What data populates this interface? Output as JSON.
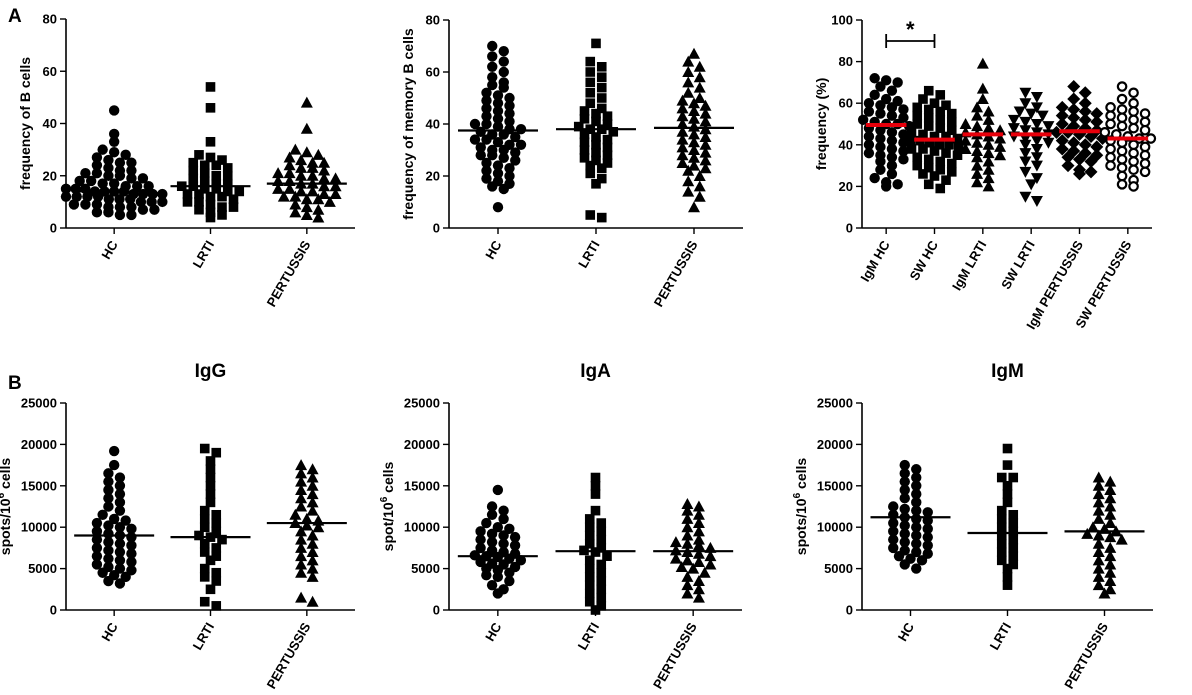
{
  "panel_labels": [
    "A",
    "B"
  ],
  "chart_data": [
    {
      "type": "scatter",
      "panel": "A",
      "title": "",
      "ylabel": "frequency of B cells",
      "ylim": [
        0,
        80
      ],
      "yticks": [
        0,
        20,
        40,
        60,
        80
      ],
      "categories": [
        "HC",
        "LRTI",
        "PERTUSSIS"
      ],
      "markers": [
        "circle",
        "square",
        "triangle"
      ],
      "medians": [
        14,
        16,
        17
      ],
      "median_color": "#000000",
      "series": [
        {
          "name": "HC",
          "values": [
            45,
            36,
            33,
            30,
            29,
            28,
            27,
            26,
            25,
            25,
            24,
            23,
            22,
            22,
            21,
            21,
            20,
            20,
            19,
            19,
            18,
            18,
            17,
            17,
            16,
            16,
            16,
            15,
            15,
            15,
            14,
            14,
            14,
            14,
            13,
            13,
            13,
            13,
            12,
            12,
            12,
            12,
            11,
            11,
            11,
            10,
            10,
            10,
            9,
            9,
            9,
            8,
            8,
            8,
            7,
            7,
            6,
            6,
            5,
            5
          ]
        },
        {
          "name": "LRTI",
          "values": [
            54,
            46,
            33,
            28,
            27,
            26,
            25,
            24,
            24,
            23,
            22,
            21,
            20,
            20,
            19,
            18,
            17,
            17,
            16,
            16,
            15,
            15,
            14,
            14,
            13,
            13,
            12,
            12,
            11,
            10,
            10,
            9,
            8,
            8,
            7,
            6,
            5,
            4
          ]
        },
        {
          "name": "PERTUSSIS",
          "values": [
            48,
            38,
            30,
            29,
            28,
            27,
            26,
            25,
            25,
            24,
            23,
            23,
            22,
            21,
            21,
            20,
            20,
            19,
            19,
            18,
            18,
            17,
            17,
            16,
            16,
            15,
            15,
            14,
            14,
            13,
            13,
            12,
            12,
            11,
            11,
            10,
            9,
            8,
            7,
            6,
            5,
            4
          ]
        }
      ]
    },
    {
      "type": "scatter",
      "panel": "A",
      "title": "",
      "ylabel": "frequency of memory B cells",
      "ylim": [
        0,
        80
      ],
      "yticks": [
        0,
        20,
        40,
        60,
        80
      ],
      "categories": [
        "HC",
        "LRTI",
        "PERTUSSIS"
      ],
      "markers": [
        "circle",
        "square",
        "triangle"
      ],
      "medians": [
        37.5,
        38,
        38.5
      ],
      "median_color": "#000000",
      "series": [
        {
          "name": "HC",
          "values": [
            70,
            68,
            66,
            64,
            62,
            60,
            58,
            56,
            55,
            54,
            52,
            51,
            50,
            49,
            48,
            47,
            46,
            45,
            44,
            43,
            42,
            41,
            40,
            40,
            39,
            38,
            38,
            37,
            36,
            36,
            35,
            34,
            34,
            33,
            32,
            32,
            31,
            30,
            30,
            29,
            28,
            28,
            27,
            26,
            25,
            24,
            23,
            22,
            21,
            20,
            19,
            18,
            17,
            16,
            15,
            8
          ]
        },
        {
          "name": "LRTI",
          "values": [
            71,
            64,
            62,
            60,
            58,
            56,
            54,
            52,
            50,
            48,
            46,
            45,
            44,
            43,
            42,
            41,
            40,
            39,
            38,
            38,
            37,
            36,
            35,
            34,
            33,
            32,
            31,
            30,
            29,
            28,
            27,
            26,
            25,
            24,
            23,
            21,
            19,
            17,
            5,
            4
          ]
        },
        {
          "name": "PERTUSSIS",
          "values": [
            67,
            64,
            62,
            60,
            58,
            56,
            54,
            52,
            50,
            49,
            48,
            47,
            46,
            45,
            44,
            43,
            42,
            41,
            40,
            39,
            38,
            37,
            36,
            35,
            34,
            33,
            32,
            31,
            30,
            29,
            28,
            27,
            26,
            25,
            24,
            23,
            22,
            20,
            18,
            16,
            14,
            12,
            8
          ]
        }
      ]
    },
    {
      "type": "scatter",
      "panel": "A",
      "title": "",
      "ylabel": "frequency (%)",
      "ylim": [
        0,
        100
      ],
      "yticks": [
        0,
        20,
        40,
        60,
        80,
        100
      ],
      "categories": [
        "IgM HC",
        "SW HC",
        "IgM LRTI",
        "SW LRTI",
        "IgM PERTUSSIS",
        "SW PERTUSSIS"
      ],
      "markers": [
        "circle",
        "square",
        "triangle",
        "triangle-down",
        "diamond",
        "circle-open"
      ],
      "medians": [
        49.5,
        42.5,
        45,
        45,
        46.5,
        43
      ],
      "median_color": "#e8000b",
      "significance": {
        "between": [
          "IgM HC",
          "SW HC"
        ],
        "label": "*"
      },
      "series": [
        {
          "name": "IgM HC",
          "values": [
            72,
            71,
            70,
            68,
            66,
            64,
            62,
            61,
            60,
            59,
            58,
            57,
            56,
            55,
            54,
            53,
            52,
            51,
            50,
            50,
            49,
            48,
            47,
            46,
            45,
            44,
            43,
            42,
            41,
            40,
            39,
            38,
            37,
            36,
            35,
            34,
            33,
            32,
            30,
            28,
            26,
            24,
            22,
            21,
            20
          ]
        },
        {
          "name": "SW HC",
          "values": [
            66,
            64,
            62,
            60,
            59,
            58,
            57,
            56,
            55,
            54,
            53,
            52,
            51,
            50,
            49,
            48,
            47,
            46,
            45,
            44,
            44,
            43,
            42,
            42,
            41,
            40,
            40,
            39,
            38,
            38,
            37,
            36,
            35,
            34,
            33,
            32,
            31,
            30,
            29,
            28,
            27,
            26,
            25,
            23,
            21,
            19
          ]
        },
        {
          "name": "IgM LRTI",
          "values": [
            79,
            67,
            62,
            58,
            56,
            54,
            52,
            50,
            49,
            48,
            47,
            46,
            45,
            44,
            43,
            42,
            41,
            40,
            39,
            38,
            37,
            36,
            35,
            34,
            32,
            30,
            28,
            26,
            24,
            22,
            20
          ]
        },
        {
          "name": "SW LRTI",
          "values": [
            65,
            63,
            60,
            58,
            56,
            55,
            54,
            52,
            51,
            50,
            49,
            48,
            47,
            46,
            45,
            44,
            43,
            42,
            41,
            40,
            38,
            36,
            34,
            32,
            30,
            27,
            24,
            21,
            15,
            13
          ]
        },
        {
          "name": "IgM PERTUSSIS",
          "values": [
            68,
            65,
            62,
            60,
            58,
            57,
            56,
            55,
            54,
            53,
            52,
            51,
            50,
            49,
            48,
            47,
            46,
            46,
            45,
            44,
            43,
            42,
            41,
            40,
            39,
            38,
            37,
            36,
            35,
            34,
            33,
            32,
            30,
            28,
            27,
            26
          ]
        },
        {
          "name": "SW PERTUSSIS",
          "values": [
            68,
            65,
            62,
            60,
            58,
            57,
            56,
            55,
            54,
            53,
            52,
            51,
            50,
            49,
            48,
            47,
            46,
            45,
            44,
            43,
            43,
            42,
            41,
            40,
            39,
            38,
            37,
            36,
            35,
            34,
            33,
            32,
            31,
            30,
            29,
            28,
            27,
            25,
            23,
            21,
            20
          ]
        }
      ]
    },
    {
      "type": "scatter",
      "panel": "B",
      "title": "IgG",
      "ylabel": "spots/10^6 cells",
      "ylabel_base": "spots/10",
      "ylabel_sup": "6",
      "ylabel_suffix": " cells",
      "ylim": [
        0,
        25000
      ],
      "yticks": [
        0,
        5000,
        10000,
        15000,
        20000,
        25000
      ],
      "categories": [
        "HC",
        "LRTI",
        "PERTUSSIS"
      ],
      "markers": [
        "circle",
        "square",
        "triangle"
      ],
      "medians": [
        9000,
        8800,
        10500
      ],
      "median_color": "#000000",
      "series": [
        {
          "name": "HC",
          "values": [
            19200,
            17500,
            16500,
            16000,
            15500,
            15000,
            14500,
            14000,
            13500,
            13000,
            12500,
            12000,
            11500,
            11000,
            10800,
            10500,
            10200,
            10000,
            9800,
            9500,
            9200,
            9000,
            8800,
            8500,
            8200,
            8000,
            7800,
            7500,
            7200,
            7000,
            6800,
            6500,
            6200,
            6000,
            5800,
            5500,
            5200,
            5000,
            4800,
            4500,
            4200,
            4000,
            3500,
            3200
          ]
        },
        {
          "name": "LRTI",
          "values": [
            19500,
            19000,
            18000,
            17000,
            16000,
            15000,
            14000,
            13000,
            12000,
            11500,
            11000,
            10500,
            10000,
            9500,
            9000,
            8800,
            8500,
            8000,
            7500,
            7000,
            6500,
            6000,
            5000,
            4500,
            4000,
            3500,
            2500,
            1000,
            500
          ]
        },
        {
          "name": "PERTUSSIS",
          "values": [
            17500,
            17000,
            16500,
            16000,
            15500,
            15000,
            14500,
            14000,
            13500,
            13000,
            12500,
            12000,
            11500,
            11000,
            10800,
            10500,
            10200,
            10000,
            9500,
            9000,
            8500,
            8000,
            7500,
            7000,
            6500,
            6000,
            5500,
            5000,
            4500,
            4000,
            1500,
            1000
          ]
        }
      ]
    },
    {
      "type": "scatter",
      "panel": "B",
      "title": "IgA",
      "ylabel": "spot/10^6 cells",
      "ylabel_base": "spot/10",
      "ylabel_sup": "6",
      "ylabel_suffix": " cells",
      "ylim": [
        0,
        25000
      ],
      "yticks": [
        0,
        5000,
        10000,
        15000,
        20000,
        25000
      ],
      "categories": [
        "HC",
        "LRTI",
        "PERTUSSIS"
      ],
      "markers": [
        "circle",
        "square",
        "triangle"
      ],
      "medians": [
        6500,
        7100,
        7100
      ],
      "median_color": "#000000",
      "series": [
        {
          "name": "HC",
          "values": [
            14500,
            12500,
            12000,
            11500,
            11000,
            10500,
            10000,
            9800,
            9500,
            9200,
            9000,
            8800,
            8500,
            8200,
            8000,
            7800,
            7500,
            7200,
            7000,
            6800,
            6600,
            6500,
            6400,
            6200,
            6000,
            5800,
            5600,
            5500,
            5200,
            5000,
            4800,
            4500,
            4200,
            4000,
            3500,
            3000,
            2500,
            2000
          ]
        },
        {
          "name": "LRTI",
          "values": [
            16000,
            15000,
            14000,
            12000,
            11000,
            10500,
            10000,
            9500,
            9000,
            8500,
            8000,
            7500,
            7200,
            7000,
            6500,
            6000,
            5500,
            5000,
            4500,
            4000,
            3500,
            3000,
            2500,
            2000,
            1500,
            1000,
            500,
            0
          ]
        },
        {
          "name": "PERTUSSIS",
          "values": [
            12800,
            12500,
            12000,
            11500,
            11000,
            10500,
            10000,
            9500,
            9000,
            8500,
            8200,
            8000,
            7800,
            7500,
            7200,
            7000,
            6800,
            6500,
            6200,
            6000,
            5800,
            5500,
            5200,
            5000,
            4500,
            4000,
            3500,
            3000,
            2500,
            2000,
            1500
          ]
        }
      ]
    },
    {
      "type": "scatter",
      "panel": "B",
      "title": "IgM",
      "ylabel": "spots/10^6 cells",
      "ylabel_base": "spots/10",
      "ylabel_sup": "6",
      "ylabel_suffix": " cells",
      "ylim": [
        0,
        25000
      ],
      "yticks": [
        0,
        5000,
        10000,
        15000,
        20000,
        25000
      ],
      "categories": [
        "HC",
        "LRTI",
        "PERTUSSIS"
      ],
      "markers": [
        "circle",
        "square",
        "triangle"
      ],
      "medians": [
        11200,
        9300,
        9500
      ],
      "median_color": "#000000",
      "series": [
        {
          "name": "HC",
          "values": [
            17500,
            17000,
            16500,
            16000,
            15500,
            15000,
            14500,
            14000,
            13500,
            13000,
            12500,
            12200,
            12000,
            11800,
            11500,
            11200,
            11000,
            10800,
            10500,
            10200,
            10000,
            9800,
            9500,
            9200,
            9000,
            8800,
            8500,
            8200,
            8000,
            7800,
            7500,
            7200,
            7000,
            6800,
            6500,
            6200,
            6000,
            5500,
            5000
          ]
        },
        {
          "name": "LRTI",
          "values": [
            19500,
            17500,
            16000,
            16000,
            15000,
            14000,
            13000,
            12000,
            11500,
            11000,
            10500,
            10000,
            9500,
            9000,
            8500,
            8000,
            7500,
            7000,
            6500,
            6000,
            5500,
            5000,
            4000,
            3000
          ]
        },
        {
          "name": "PERTUSSIS",
          "values": [
            16000,
            15500,
            15000,
            14500,
            14000,
            13500,
            13000,
            12500,
            12000,
            11500,
            11000,
            10500,
            10000,
            9800,
            9500,
            9200,
            9000,
            8800,
            8500,
            8000,
            7500,
            7000,
            6500,
            6000,
            5500,
            5000,
            4500,
            4000,
            3500,
            3000,
            2500,
            2000
          ]
        }
      ]
    }
  ]
}
